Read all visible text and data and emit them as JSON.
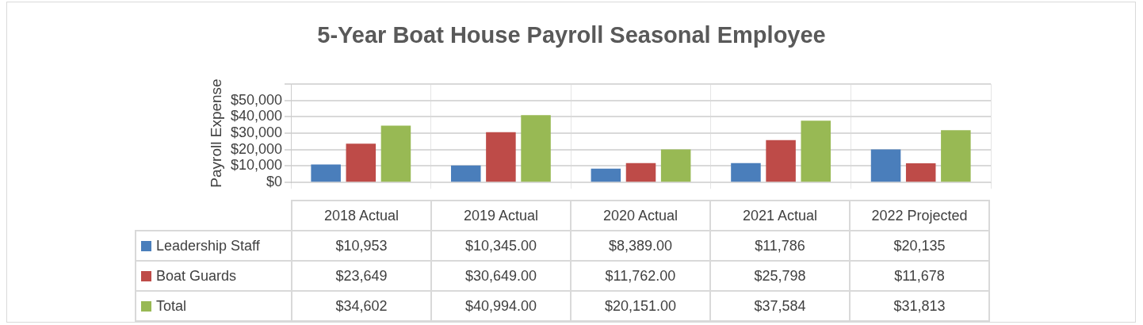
{
  "chart_data": {
    "type": "bar",
    "title": "5-Year Boat House Payroll Seasonal Employee",
    "ylabel": "Payroll Expense",
    "categories": [
      "2018 Actual",
      "2019 Actual",
      "2020 Actual",
      "2021 Actual",
      "2022 Projected"
    ],
    "series": [
      {
        "name": "Leadership Staff",
        "color": "#4a7ebb",
        "values": [
          10953,
          10345,
          8389,
          11786,
          20135
        ],
        "value_labels": [
          "$10,953",
          "$10,345.00",
          "$8,389.00",
          "$11,786",
          "$20,135"
        ]
      },
      {
        "name": "Boat Guards",
        "color": "#be4b48",
        "values": [
          23649,
          30649,
          11762,
          25798,
          11678
        ],
        "value_labels": [
          "$23,649",
          "$30,649.00",
          "$11,762.00",
          "$25,798",
          "$11,678"
        ]
      },
      {
        "name": "Total",
        "color": "#98b954",
        "values": [
          34602,
          40994,
          20151,
          37584,
          31813
        ],
        "value_labels": [
          "$34,602",
          "$40,994.00",
          "$20,151.00",
          "$37,584",
          "$31,813"
        ]
      }
    ],
    "ylim": [
      0,
      60000
    ],
    "yticks": [
      {
        "value": 0,
        "label": "$0"
      },
      {
        "value": 10000,
        "label": "$10,000"
      },
      {
        "value": 20000,
        "label": "$20,000"
      },
      {
        "value": 30000,
        "label": "$30,000"
      },
      {
        "value": 40000,
        "label": "$40,000"
      },
      {
        "value": 50000,
        "label": "$50,000"
      },
      {
        "value": 60000,
        "label": null
      }
    ],
    "grid": true,
    "legend": "bottom"
  }
}
